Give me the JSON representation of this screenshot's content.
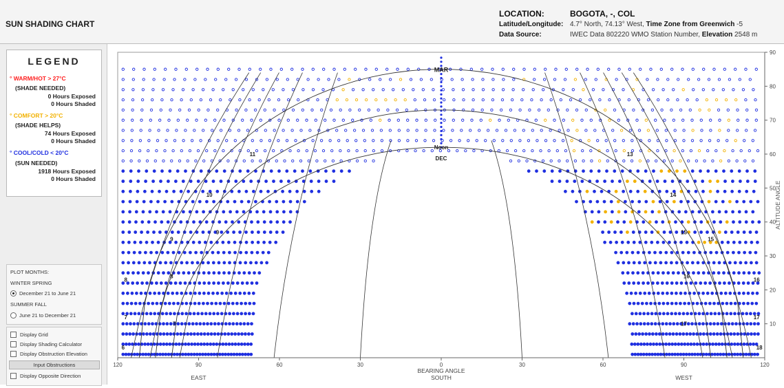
{
  "header": {
    "title": "SUN SHADING CHART",
    "location_label": "LOCATION:",
    "location_value": "BOGOTA, -, COL",
    "latlon_label": "Latitude/Longitude:",
    "latlon_value": "4.7° North, 74.13° West,",
    "timezone_label": "Time Zone from Greenwich",
    "timezone_value": "-5",
    "source_label": "Data Source:",
    "source_value": "IWEC Data",
    "station_value": "802220 WMO Station Number,",
    "elevation_label": "Elevation",
    "elevation_value": "2548 m"
  },
  "legend": {
    "title": "LEGEND",
    "warm": {
      "label": "WARM/HOT > 27°C",
      "need": "(SHADE NEEDED)",
      "exposed": "0 Hours Exposed",
      "shaded": "0 Hours Shaded",
      "color": "#ff2020"
    },
    "comfort": {
      "label": "COMFORT > 20°C",
      "need": "(SHADE HELPS)",
      "exposed": "74 Hours Exposed",
      "shaded": "0 Hours Shaded",
      "color": "#f2b100"
    },
    "cool": {
      "label": "COOL/COLD < 20°C",
      "need": "(SUN NEEDED)",
      "exposed": "1918 Hours Exposed",
      "shaded": "0 Hours Shaded",
      "color": "#1f2fe0"
    }
  },
  "plot_months": {
    "heading": "PLOT MONTHS:",
    "option1_group": "WINTER SPRING",
    "option1_label": "December 21 to June 21",
    "option1_checked": true,
    "option2_group": "SUMMER FALL",
    "option2_label": "June 21 to December 21",
    "option2_checked": false
  },
  "options": {
    "grid": "Display Grid",
    "shading_calc": "Display Shading Calculator",
    "obstruction_elev": "Display Obstruction Elevation",
    "input_button": "Input Obstructions",
    "opposite": "Display Opposite Direction"
  },
  "chart_data": {
    "type": "scatter",
    "x": {
      "label": "BEARING ANGLE",
      "range": [
        -120,
        120
      ],
      "ticks": [
        -120,
        -90,
        -60,
        -30,
        0,
        30,
        60,
        90,
        120
      ],
      "tick_labels": [
        "120",
        "90",
        "60",
        "30",
        "0",
        "30",
        "60",
        "90",
        "120"
      ],
      "direction_labels": {
        "left": "EAST",
        "center": "SOUTH",
        "right": "WEST"
      }
    },
    "y": {
      "label": "ALTITUDE ANGLE",
      "range": [
        0,
        90
      ],
      "ticks": [
        10,
        20,
        30,
        40,
        50,
        60,
        70,
        80,
        90
      ]
    },
    "month_markers": {
      "top": "MAR",
      "bottom": "DEC"
    },
    "hour_labels": [
      "6",
      "7",
      "8",
      "9",
      "10",
      "11",
      "Noon",
      "13",
      "14",
      "15",
      "16",
      "17",
      "18"
    ],
    "sun_paths": [
      {
        "name": "MAR",
        "noon_altitude": 85
      },
      {
        "name": "DEC",
        "noon_altitude": 62
      }
    ],
    "comfort_color": "#f2b100",
    "cool_color": "#1f2fe0"
  }
}
